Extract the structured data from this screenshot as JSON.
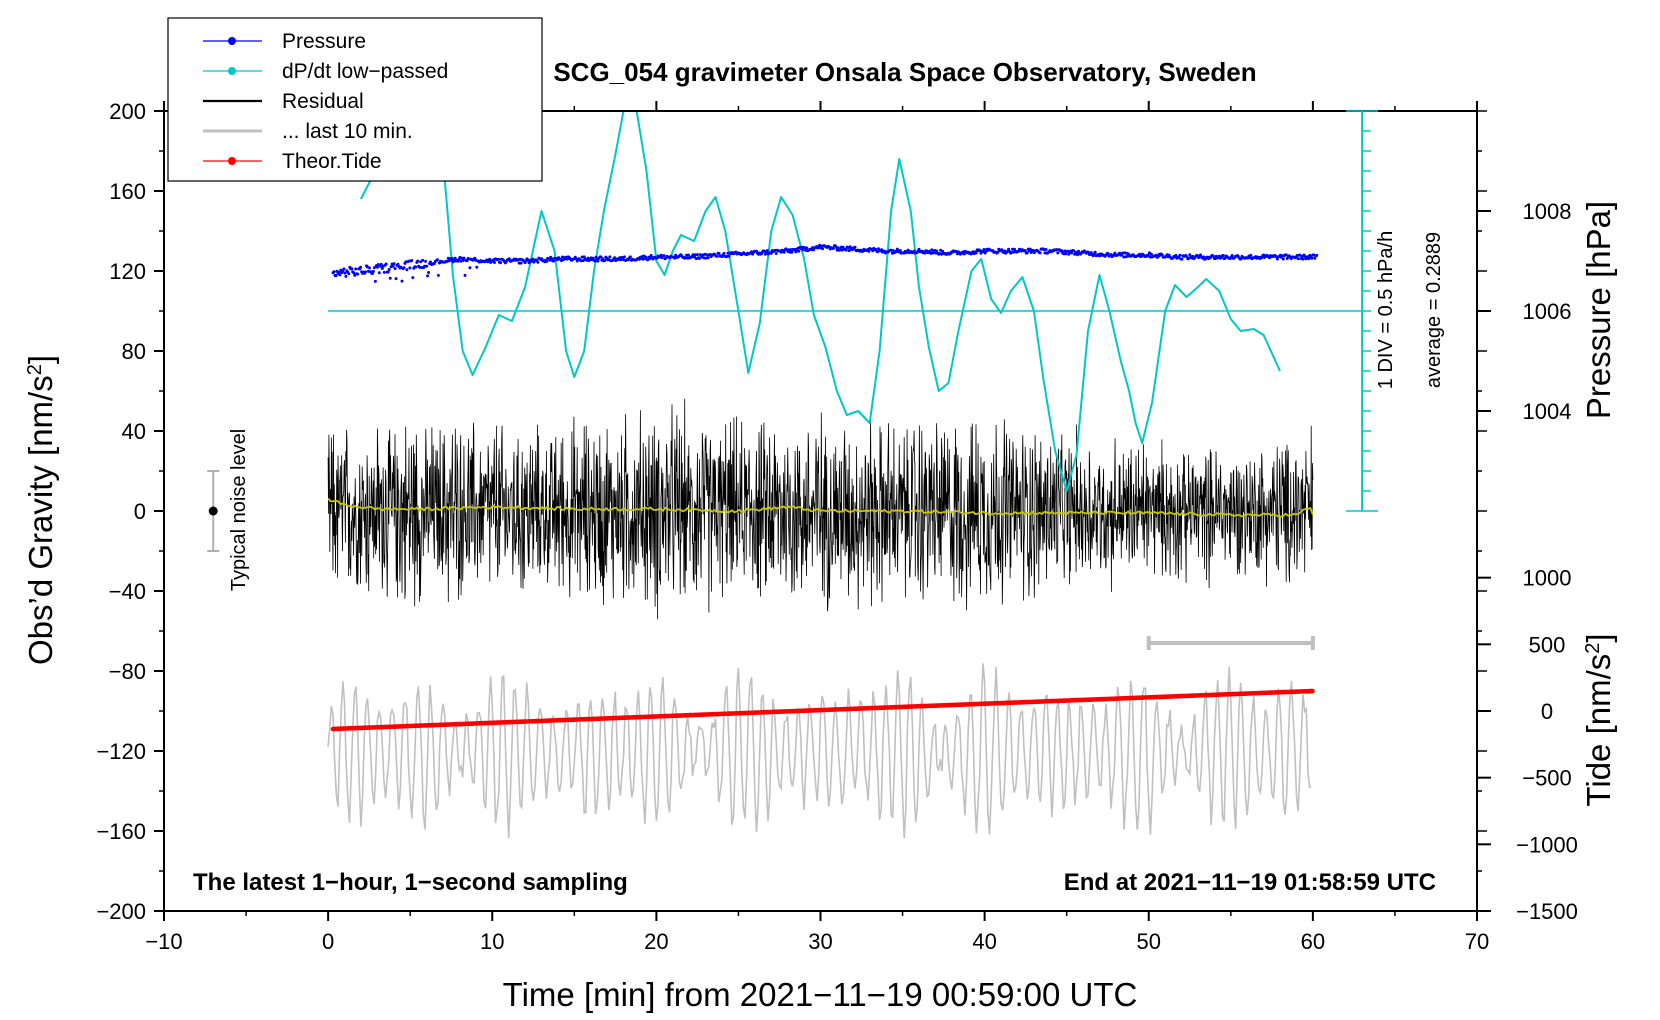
{
  "chart_data": {
    "type": "line",
    "title": "SCG_054 gravimeter Onsala Space Observatory, Sweden",
    "xlabel": "Time [min] from 2021−11−19 00:59:00 UTC",
    "ylabel_left_main": "Obs’d Gravity [nm/s",
    "ylabel_left_sup": "2",
    "ylabel_left_end": "]",
    "ylabel_right_pressure": "Pressure [hPa]",
    "ylabel_right_tide_main": "Tide [nm/s",
    "ylabel_right_tide_sup": "2",
    "ylabel_right_tide_end": "]",
    "xlim": [
      -10,
      70
    ],
    "ylim": [
      -200,
      200
    ],
    "x_ticks": [
      "−10",
      "0",
      "10",
      "20",
      "30",
      "40",
      "50",
      "60",
      "70"
    ],
    "y_ticks": [
      "200",
      "160",
      "120",
      "80",
      "40",
      "0",
      "−40",
      "−80",
      "−120",
      "−160",
      "−200"
    ],
    "pressure_ticks": [
      "1008",
      "1006",
      "1004"
    ],
    "pressure_axis": {
      "values": [
        1008,
        1006,
        1004
      ],
      "ref_value": 1006,
      "ref_gravity": 100,
      "units_per_hpa": 25
    },
    "tide_ticks": [
      "1000",
      "500",
      "0",
      "−500",
      "−1000",
      "−1500"
    ],
    "tide_axis": {
      "values": [
        1000,
        500,
        0,
        -500,
        -1000,
        -1500
      ],
      "ref_value": 0,
      "ref_gravity": -100,
      "units_per_nms2": 0.06666667
    },
    "bottom_left_note": "The latest 1−hour, 1−second sampling",
    "bottom_right_note": "End at 2021−11−19 01:58:59 UTC",
    "noise_label": "Typical noise level",
    "noise_bar": {
      "x": -7,
      "center": 0,
      "low": -20,
      "high": 20
    },
    "dpdt_scale_label": "1 DIV = 0.5 hPa/h",
    "dpdt_average_label": "average = 0.2889",
    "dpdt_scale": {
      "x": 63,
      "zero": 100,
      "low": 0,
      "high": 200,
      "div": 10
    },
    "last10_range": {
      "from": 50,
      "to": 60,
      "y": -66
    },
    "legend": [
      {
        "label": "Pressure",
        "color": "#0000ff",
        "marker": true
      },
      {
        "label": "dP/dt low−passed",
        "color": "#00c8c8",
        "marker": true
      },
      {
        "label": "Residual",
        "color": "#000000",
        "marker": false
      },
      {
        "label": "... last 10 min.",
        "color": "#c0c0c0",
        "marker": false
      },
      {
        "label": "Theor.Tide",
        "color": "#ff0000",
        "marker": true
      }
    ],
    "series": [
      {
        "name": "Pressure",
        "color": "#0000ff",
        "points": [
          [
            0.3,
            119
          ],
          [
            2,
            120
          ],
          [
            4,
            122
          ],
          [
            6,
            124
          ],
          [
            8,
            126
          ],
          [
            10,
            125
          ],
          [
            12,
            125
          ],
          [
            14,
            126
          ],
          [
            16,
            126
          ],
          [
            18,
            126
          ],
          [
            20,
            127
          ],
          [
            22,
            127
          ],
          [
            24,
            128
          ],
          [
            26,
            129
          ],
          [
            28,
            130
          ],
          [
            30,
            132
          ],
          [
            32,
            131
          ],
          [
            34,
            130
          ],
          [
            36,
            130
          ],
          [
            38,
            129
          ],
          [
            40,
            130
          ],
          [
            42,
            130
          ],
          [
            44,
            130
          ],
          [
            46,
            129
          ],
          [
            48,
            128
          ],
          [
            50,
            128
          ],
          [
            52,
            127
          ],
          [
            54,
            127
          ],
          [
            56,
            127
          ],
          [
            58,
            127
          ],
          [
            60,
            127
          ]
        ]
      },
      {
        "name": "dP/dt low−passed",
        "color": "#00c8c8",
        "points": [
          [
            2,
            156
          ],
          [
            3,
            172
          ],
          [
            4,
            188
          ],
          [
            5,
            200
          ],
          [
            6.2,
            200
          ],
          [
            7,
            176
          ],
          [
            7.6,
            118
          ],
          [
            8.2,
            80
          ],
          [
            8.8,
            68
          ],
          [
            9.6,
            82
          ],
          [
            10.4,
            98
          ],
          [
            11.2,
            95
          ],
          [
            12,
            112
          ],
          [
            13,
            150
          ],
          [
            13.8,
            130
          ],
          [
            14.5,
            80
          ],
          [
            15,
            67
          ],
          [
            15.6,
            80
          ],
          [
            16.2,
            120
          ],
          [
            16.8,
            150
          ],
          [
            17.5,
            178
          ],
          [
            18,
            200
          ],
          [
            18.8,
            200
          ],
          [
            19.4,
            170
          ],
          [
            20,
            125
          ],
          [
            20.5,
            118
          ],
          [
            21,
            130
          ],
          [
            21.5,
            138
          ],
          [
            22.3,
            135
          ],
          [
            23,
            150
          ],
          [
            23.6,
            157
          ],
          [
            24.2,
            140
          ],
          [
            25,
            100
          ],
          [
            25.6,
            69
          ],
          [
            26.3,
            94
          ],
          [
            27,
            140
          ],
          [
            27.6,
            157
          ],
          [
            28.3,
            148
          ],
          [
            29,
            126
          ],
          [
            29.6,
            98
          ],
          [
            30.3,
            82
          ],
          [
            31,
            60
          ],
          [
            31.6,
            48
          ],
          [
            32.3,
            50
          ],
          [
            33,
            44
          ],
          [
            33.6,
            80
          ],
          [
            34.3,
            150
          ],
          [
            34.8,
            176
          ],
          [
            35.5,
            150
          ],
          [
            36,
            112
          ],
          [
            36.6,
            82
          ],
          [
            37.2,
            60
          ],
          [
            37.8,
            64
          ],
          [
            38.4,
            90
          ],
          [
            39.2,
            120
          ],
          [
            39.8,
            126
          ],
          [
            40.4,
            106
          ],
          [
            41,
            99
          ],
          [
            41.6,
            110
          ],
          [
            42.3,
            117
          ],
          [
            43,
            100
          ],
          [
            43.6,
            65
          ],
          [
            44.3,
            30
          ],
          [
            45,
            10
          ],
          [
            45.6,
            28
          ],
          [
            46.3,
            90
          ],
          [
            47,
            118
          ],
          [
            47.6,
            100
          ],
          [
            48.3,
            75
          ],
          [
            48.8,
            60
          ],
          [
            49.2,
            44
          ],
          [
            49.6,
            34
          ],
          [
            50.2,
            54
          ],
          [
            51,
            100
          ],
          [
            51.6,
            113
          ],
          [
            52.3,
            107
          ],
          [
            53,
            112
          ],
          [
            53.5,
            116
          ],
          [
            54.3,
            110
          ],
          [
            55,
            96
          ],
          [
            55.6,
            90
          ],
          [
            56.4,
            91
          ],
          [
            57,
            88
          ],
          [
            58,
            70
          ]
        ]
      },
      {
        "name": "Residual",
        "color": "#000000",
        "x_start": 0,
        "x_end": 60,
        "amplitude_envelope": [
          [
            0,
            45
          ],
          [
            5,
            52
          ],
          [
            10,
            48
          ],
          [
            15,
            50
          ],
          [
            20,
            55
          ],
          [
            25,
            48
          ],
          [
            30,
            52
          ],
          [
            35,
            50
          ],
          [
            40,
            55
          ],
          [
            45,
            42
          ],
          [
            50,
            38
          ],
          [
            55,
            35
          ],
          [
            60,
            45
          ]
        ]
      },
      {
        "name": "Residual smoothed",
        "color": "#c8c800",
        "points": [
          [
            0,
            6
          ],
          [
            1,
            3
          ],
          [
            3,
            1
          ],
          [
            6,
            1
          ],
          [
            10,
            2
          ],
          [
            15,
            1
          ],
          [
            20,
            1
          ],
          [
            25,
            0
          ],
          [
            28,
            2
          ],
          [
            30,
            0
          ],
          [
            35,
            0
          ],
          [
            40,
            -1
          ],
          [
            45,
            -1
          ],
          [
            50,
            -1
          ],
          [
            55,
            -2
          ],
          [
            59,
            -2
          ],
          [
            59.8,
            2
          ],
          [
            60,
            -2
          ]
        ]
      },
      {
        "name": "... last 10 min.",
        "color": "#c0c0c0",
        "x_start": 0,
        "x_end": 60,
        "center": -120,
        "amplitude": 32
      },
      {
        "name": "Theor.Tide",
        "color": "#ff0000",
        "points": [
          [
            0.3,
            -109
          ],
          [
            60,
            -90
          ]
        ]
      }
    ]
  }
}
